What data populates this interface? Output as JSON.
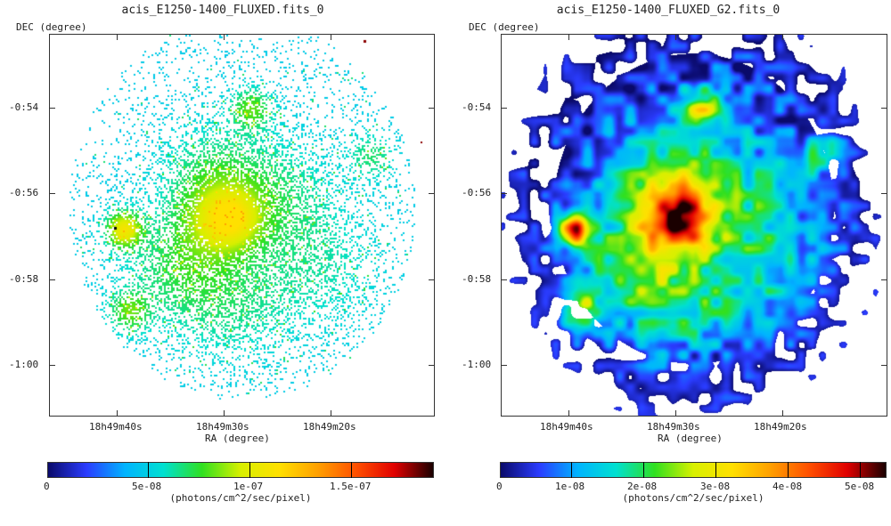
{
  "colors": {
    "frame": "#333333",
    "background": "#ffffff",
    "colormap": [
      "#0a0a6a",
      "#2a3cff",
      "#00b4ff",
      "#00e0d0",
      "#30e020",
      "#d8f000",
      "#ffe000",
      "#ffa000",
      "#ff5000",
      "#e00000",
      "#1a0000"
    ]
  },
  "panels": [
    {
      "id": "left",
      "title": "acis_E1250-1400_FLUXED.fits_0",
      "ylabel": "DEC (degree)",
      "xlabel": "RA (degree)",
      "dec_ticks": [
        "-0:54",
        "-0:56",
        "-0:58",
        "-1:00"
      ],
      "ra_ticks": [
        "18h49m40s",
        "18h49m30s",
        "18h49m20s"
      ],
      "colorbar": {
        "ticks": [
          "0",
          "5e-08",
          "1e-07",
          "1.5e-07"
        ],
        "units": "(photons/cm^2/sec/pixel)"
      },
      "render": "sparse"
    },
    {
      "id": "right",
      "title": "acis_E1250-1400_FLUXED_G2.fits_0",
      "ylabel": "DEC (degree)",
      "xlabel": "RA (degree)",
      "dec_ticks": [
        "-0:54",
        "-0:56",
        "-0:58",
        "-1:00"
      ],
      "ra_ticks": [
        "18h49m40s",
        "18h49m30s",
        "18h49m20s"
      ],
      "colorbar": {
        "ticks": [
          "0",
          "1e-08",
          "2e-08",
          "3e-08",
          "4e-08",
          "5e-08"
        ],
        "units": "(photons/cm^2/sec/pixel)"
      },
      "render": "smooth"
    }
  ]
}
